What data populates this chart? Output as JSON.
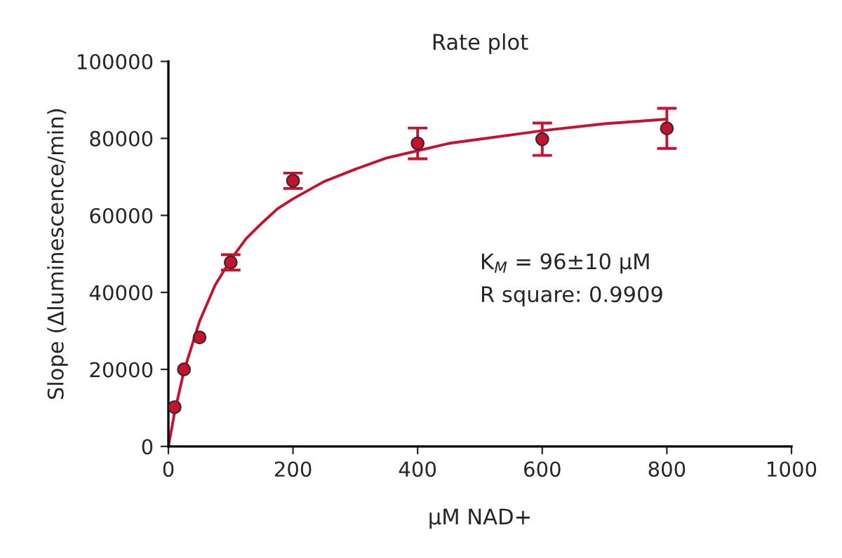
{
  "chart_data": {
    "type": "scatter",
    "title": "Rate plot",
    "xlabel": "µM NAD+",
    "ylabel": "Slope (Δluminescence/min)",
    "xlim": [
      0,
      1000
    ],
    "xticks": [
      0,
      200,
      400,
      600,
      800,
      1000
    ],
    "ylim": [
      0,
      100000
    ],
    "yticks": [
      0,
      20000,
      40000,
      60000,
      80000,
      100000
    ],
    "grid": false,
    "legend": false,
    "series": [
      {
        "type": "line",
        "marker": "none",
        "color": "#c41230",
        "x": [
          0,
          10,
          25,
          50,
          75,
          100,
          125,
          150,
          175,
          200,
          250,
          300,
          350,
          400,
          450,
          500,
          600,
          700,
          800
        ],
        "values": [
          0,
          8900,
          19600,
          32500,
          41900,
          48500,
          54000,
          58000,
          61700,
          64300,
          68800,
          72000,
          74900,
          76800,
          78700,
          79800,
          82000,
          83800,
          85000
        ]
      },
      {
        "marker": "circle",
        "color": "#c41230",
        "x": [
          10,
          25,
          50,
          100,
          200,
          400,
          600,
          800
        ],
        "values": [
          10200,
          20000,
          28300,
          47800,
          69000,
          78700,
          79800,
          82600
        ],
        "errors": [
          null,
          null,
          null,
          2000,
          2000,
          4000,
          4200,
          5200
        ]
      }
    ],
    "annotations": [
      "K$_{M}$ = 96±10 µM",
      "R square: 0.9909"
    ]
  }
}
